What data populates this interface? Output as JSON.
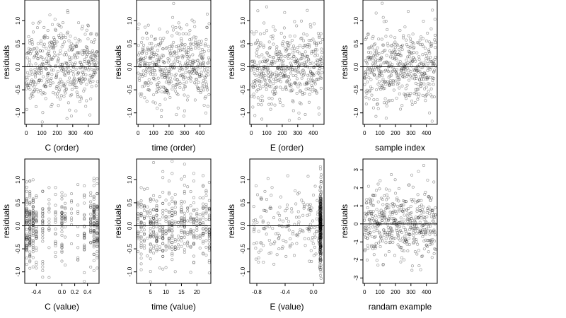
{
  "chart_data": [
    {
      "type": "scatter",
      "xlabel": "C (order)",
      "ylabel": "residuals",
      "xlim": [
        -10,
        470
      ],
      "ylim": [
        -1.25,
        1.45
      ],
      "x_ticks": [
        0,
        100,
        200,
        300,
        400
      ],
      "x_tick_labels": [
        "0",
        "100",
        "200",
        "300",
        "400"
      ],
      "y_ticks": [
        -1.0,
        -0.5,
        0.0,
        0.5,
        1.0
      ],
      "y_tick_labels": [
        "-1.0",
        "-0.5",
        "0.0",
        "0.5",
        "1.0"
      ],
      "reference_line_y": 0,
      "point_color": "#000000",
      "n_points": 460,
      "gen": {
        "kind": "index",
        "n": 460,
        "sd": 0.42,
        "seed": 11,
        "x0": 0,
        "x1": 460
      }
    },
    {
      "type": "scatter",
      "xlabel": "time (order)",
      "ylabel": "residuals",
      "xlim": [
        -10,
        470
      ],
      "ylim": [
        -1.25,
        1.45
      ],
      "x_ticks": [
        0,
        100,
        200,
        300,
        400
      ],
      "x_tick_labels": [
        "0",
        "100",
        "200",
        "300",
        "400"
      ],
      "y_ticks": [
        -1.0,
        -0.5,
        0.0,
        0.5,
        1.0
      ],
      "y_tick_labels": [
        "-1.0",
        "-0.5",
        "0.0",
        "0.5",
        "1.0"
      ],
      "reference_line_y": 0,
      "point_color": "#000000",
      "n_points": 460,
      "gen": {
        "kind": "index",
        "n": 460,
        "sd": 0.42,
        "seed": 23,
        "x0": 0,
        "x1": 460
      }
    },
    {
      "type": "scatter",
      "xlabel": "E (order)",
      "ylabel": "residuals",
      "xlim": [
        -10,
        470
      ],
      "ylim": [
        -1.25,
        1.45
      ],
      "x_ticks": [
        0,
        100,
        200,
        300,
        400
      ],
      "x_tick_labels": [
        "0",
        "100",
        "200",
        "300",
        "400"
      ],
      "y_ticks": [
        -1.0,
        -0.5,
        0.0,
        0.5,
        1.0
      ],
      "y_tick_labels": [
        "-1.0",
        "-0.5",
        "0.0",
        "0.5",
        "1.0"
      ],
      "reference_line_y": 0,
      "point_color": "#000000",
      "n_points": 460,
      "gen": {
        "kind": "index",
        "n": 460,
        "sd": 0.42,
        "seed": 37,
        "x0": 0,
        "x1": 460
      }
    },
    {
      "type": "scatter",
      "xlabel": "sample index",
      "ylabel": "residuals",
      "xlim": [
        -10,
        470
      ],
      "ylim": [
        -1.25,
        1.45
      ],
      "x_ticks": [
        0,
        100,
        200,
        300,
        400
      ],
      "x_tick_labels": [
        "0",
        "100",
        "200",
        "300",
        "400"
      ],
      "y_ticks": [
        -1.0,
        -0.5,
        0.0,
        0.5,
        1.0
      ],
      "y_tick_labels": [
        "-1.0",
        "-0.5",
        "0.0",
        "0.5",
        "1.0"
      ],
      "reference_line_y": 0,
      "point_color": "#000000",
      "n_points": 460,
      "gen": {
        "kind": "index",
        "n": 460,
        "sd": 0.42,
        "seed": 41,
        "x0": 0,
        "x1": 460
      }
    },
    {
      "type": "scatter",
      "xlabel": "C (value)",
      "ylabel": "residuals",
      "xlim": [
        -0.58,
        0.58
      ],
      "ylim": [
        -1.25,
        1.45
      ],
      "x_ticks": [
        -0.4,
        0.0,
        0.2,
        0.4
      ],
      "x_tick_labels": [
        "-0.4",
        "0.0",
        "0.2",
        "0.4"
      ],
      "y_ticks": [
        -1.0,
        -0.5,
        0.0,
        0.5,
        1.0
      ],
      "y_tick_labels": [
        "-1.0",
        "-0.5",
        "0.0",
        "0.5",
        "1.0"
      ],
      "reference_line_y": 0,
      "point_color": "#000000",
      "n_points": 460,
      "gen": {
        "kind": "discrete",
        "n": 460,
        "sd": 0.42,
        "seed": 53,
        "levels": [
          -0.55,
          -0.5,
          -0.45,
          -0.4,
          -0.3,
          -0.2,
          -0.1,
          0.0,
          0.05,
          0.15,
          0.25,
          0.35,
          0.45,
          0.5,
          0.55
        ],
        "weights": [
          3,
          4,
          3,
          2,
          2,
          1,
          1,
          2,
          1,
          1,
          1,
          2,
          2,
          4,
          3
        ]
      }
    },
    {
      "type": "scatter",
      "xlabel": "time (value)",
      "ylabel": "residuals",
      "xlim": [
        0.5,
        24.5
      ],
      "ylim": [
        -1.25,
        1.45
      ],
      "x_ticks": [
        5,
        10,
        15,
        20
      ],
      "x_tick_labels": [
        "5",
        "10",
        "15",
        "20"
      ],
      "y_ticks": [
        -1.0,
        -0.5,
        0.0,
        0.5,
        1.0
      ],
      "y_tick_labels": [
        "-1.0",
        "-0.5",
        "0.0",
        "0.5",
        "1.0"
      ],
      "reference_line_y": 0,
      "point_color": "#000000",
      "n_points": 460,
      "gen": {
        "kind": "discrete",
        "n": 460,
        "sd": 0.42,
        "seed": 67,
        "levels": [
          1,
          2,
          3,
          4,
          5,
          6,
          7,
          8,
          9,
          10,
          11,
          12,
          13,
          14,
          15,
          16,
          17,
          18,
          19,
          20,
          21,
          22,
          23,
          24
        ],
        "weights": [
          1,
          2,
          1,
          1,
          2,
          1,
          2,
          1,
          2,
          1,
          2,
          3,
          1,
          1,
          2,
          2,
          1,
          1,
          2,
          1,
          1,
          2,
          1,
          2
        ]
      }
    },
    {
      "type": "scatter",
      "xlabel": "E (value)",
      "ylabel": "residuals",
      "xlim": [
        -0.9,
        0.15
      ],
      "ylim": [
        -1.25,
        1.45
      ],
      "x_ticks": [
        -0.8,
        -0.4,
        0.0
      ],
      "x_tick_labels": [
        "-0.8",
        "-0.4",
        "0.0"
      ],
      "y_ticks": [
        -1.0,
        -0.5,
        0.0,
        0.5,
        1.0
      ],
      "y_tick_labels": [
        "-1.0",
        "-0.5",
        "0.0",
        "0.5",
        "1.0"
      ],
      "reference_line_y": 0,
      "point_color": "#000000",
      "n_points": 460,
      "gen": {
        "kind": "clustered",
        "n": 460,
        "sd": 0.42,
        "seed": 79,
        "cluster_x": 0.1,
        "cluster_width": 0.02,
        "cluster_fraction": 0.62,
        "spread_min": -0.85,
        "spread_max": 0.1
      }
    },
    {
      "type": "scatter",
      "xlabel": "randam example",
      "ylabel": "residuals",
      "xlim": [
        -10,
        470
      ],
      "ylim": [
        -3.3,
        3.6
      ],
      "x_ticks": [
        0,
        100,
        200,
        300,
        400
      ],
      "x_tick_labels": [
        "0",
        "100",
        "200",
        "300",
        "400"
      ],
      "y_ticks": [
        -3,
        -2,
        -1,
        0,
        1,
        2,
        3
      ],
      "y_tick_labels": [
        "-3",
        "-2",
        "-1",
        "0",
        "1",
        "2",
        "3"
      ],
      "reference_line_y": 0,
      "point_color": "#000000",
      "n_points": 460,
      "gen": {
        "kind": "index",
        "n": 460,
        "sd": 1.0,
        "seed": 97,
        "x0": 0,
        "x1": 460
      }
    }
  ]
}
